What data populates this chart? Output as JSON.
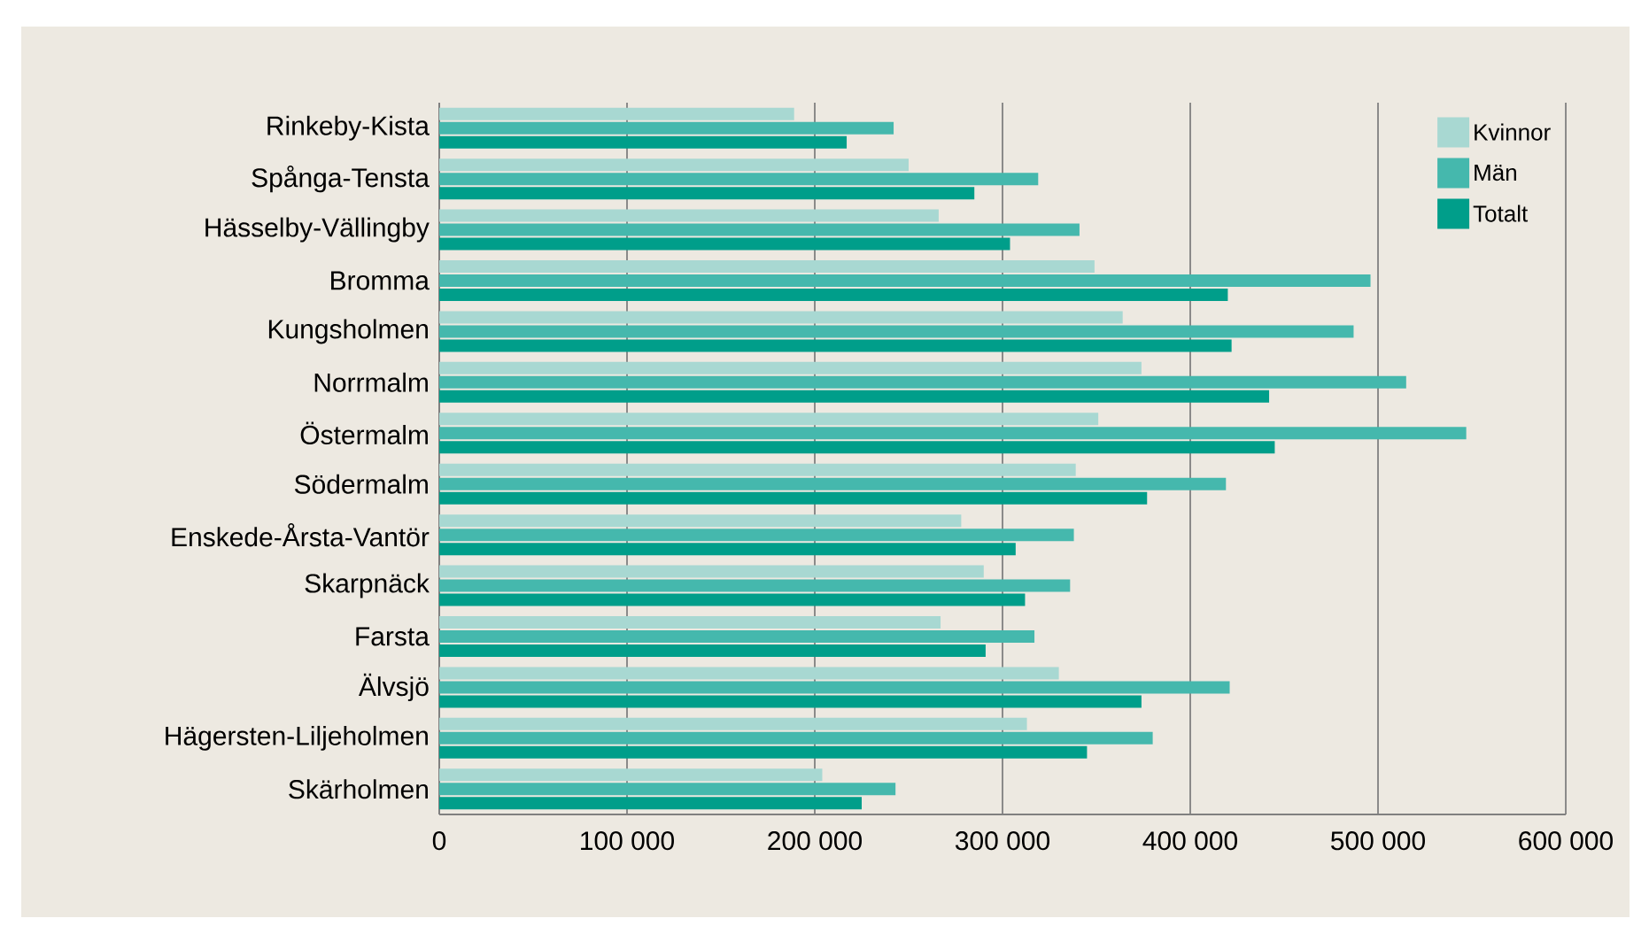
{
  "chart_data": {
    "type": "bar",
    "orientation": "horizontal",
    "categories": [
      "Rinkeby-Kista",
      "Spånga-Tensta",
      "Hässelby-Vällingby",
      "Bromma",
      "Kungsholmen",
      "Norrmalm",
      "Östermalm",
      "Södermalm",
      "Enskede-Årsta-Vantör",
      "Skarpnäck",
      "Farsta",
      "Älvsjö",
      "Hägersten-Liljeholmen",
      "Skärholmen"
    ],
    "series": [
      {
        "name": "Kvinnor",
        "color": "#a8d8d2",
        "values": [
          189000,
          250000,
          266000,
          349000,
          364000,
          374000,
          351000,
          339000,
          278000,
          290000,
          267000,
          330000,
          313000,
          204000
        ]
      },
      {
        "name": "Män",
        "color": "#45b8ad",
        "values": [
          242000,
          319000,
          341000,
          496000,
          487000,
          515000,
          547000,
          419000,
          338000,
          336000,
          317000,
          421000,
          380000,
          243000
        ]
      },
      {
        "name": "Totalt",
        "color": "#009e8a",
        "values": [
          217000,
          285000,
          304000,
          420000,
          422000,
          442000,
          445000,
          377000,
          307000,
          312000,
          291000,
          374000,
          345000,
          225000
        ]
      }
    ],
    "xlim": [
      0,
      600000
    ],
    "xticks": [
      0,
      {
        "value": 100000,
        "label": "100 000"
      },
      {
        "value": 200000,
        "label": "200 000"
      },
      {
        "value": 300000,
        "label": "300 000"
      },
      {
        "value": 400000,
        "label": "400 000"
      },
      {
        "value": 500000,
        "label": "500 000"
      },
      {
        "value": 600000,
        "label": "600 000"
      }
    ],
    "grid": "x",
    "legend": "top right"
  }
}
